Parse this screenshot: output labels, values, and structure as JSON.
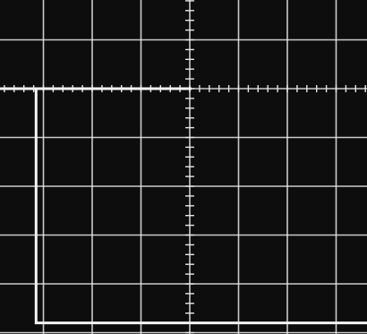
{
  "screen": {
    "background_color": "#0d0d0d",
    "graticule_color": "#e6e6e6",
    "trace_color": "#f4f4f4",
    "divisions_x": 8,
    "divisions_y": 7,
    "subdivisions_per_division": 5
  },
  "trace": {
    "type": "step",
    "x_div": [
      0.0,
      0.85,
      0.85,
      8.0
    ],
    "y_div": [
      0.0,
      0.0,
      4.8,
      4.8
    ]
  }
}
